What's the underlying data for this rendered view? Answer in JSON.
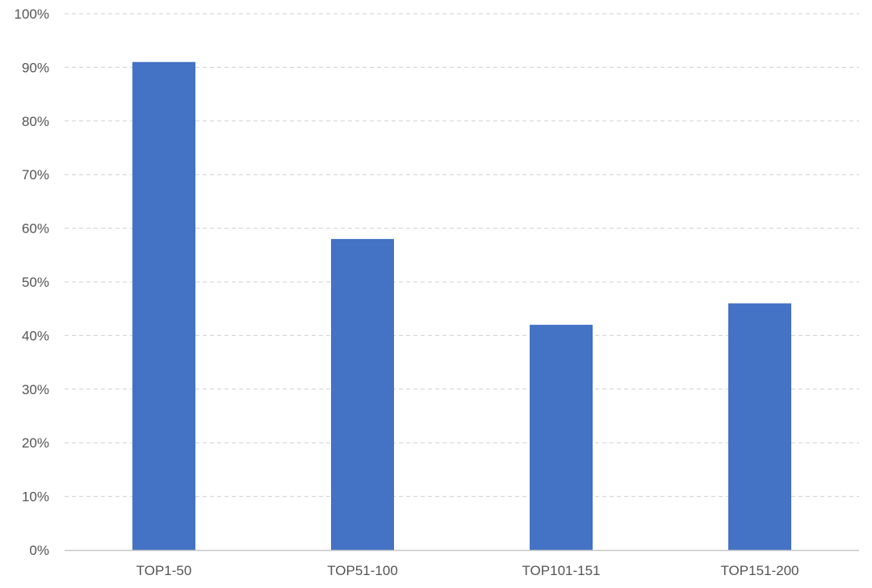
{
  "chart_data": {
    "type": "bar",
    "title": "",
    "xlabel": "",
    "ylabel": "",
    "categories": [
      "TOP1-50",
      "TOP51-100",
      "TOP101-151",
      "TOP151-200"
    ],
    "values": [
      91,
      58,
      42,
      46
    ],
    "ylim": [
      0,
      100
    ],
    "yticks": [
      "0%",
      "10%",
      "20%",
      "30%",
      "40%",
      "50%",
      "60%",
      "70%",
      "80%",
      "90%",
      "100%"
    ],
    "grid": true,
    "bar_color": "#4472C4",
    "legend": "none"
  }
}
